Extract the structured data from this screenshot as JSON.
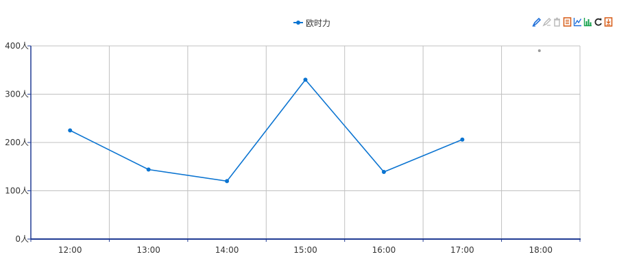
{
  "colors": {
    "series": "#0b74d1",
    "axis": "#1f3a93",
    "grid": "#c0c0c0",
    "text": "#333333",
    "tool_blue": "#1e6fd9",
    "tool_gray": "#b7b7b7",
    "tool_orange": "#d8601d",
    "tool_green": "#12a04a",
    "tool_dark": "#222222"
  },
  "legend": {
    "label": "欧时力"
  },
  "toolbox": [
    {
      "icon": "mark-pen-icon"
    },
    {
      "icon": "undo-mark-icon"
    },
    {
      "icon": "clear-mark-icon"
    },
    {
      "icon": "data-view-icon"
    },
    {
      "icon": "line-chart-icon"
    },
    {
      "icon": "bar-chart-icon"
    },
    {
      "icon": "restore-icon"
    },
    {
      "icon": "save-image-icon"
    }
  ],
  "chart_data": {
    "type": "line",
    "title": "",
    "xlabel": "",
    "ylabel": "",
    "categories": [
      "12:00",
      "13:00",
      "14:00",
      "15:00",
      "16:00",
      "17:00",
      "18:00"
    ],
    "series": [
      {
        "name": "欧时力",
        "values": [
          225,
          144,
          120,
          330,
          139,
          206,
          null
        ]
      }
    ],
    "ylim": [
      0,
      400
    ],
    "yticks": [
      0,
      100,
      200,
      300,
      400
    ],
    "ytick_labels": [
      "0人",
      "100人",
      "200人",
      "300人",
      "400人"
    ],
    "grid": true,
    "legend_position": "top-center"
  }
}
